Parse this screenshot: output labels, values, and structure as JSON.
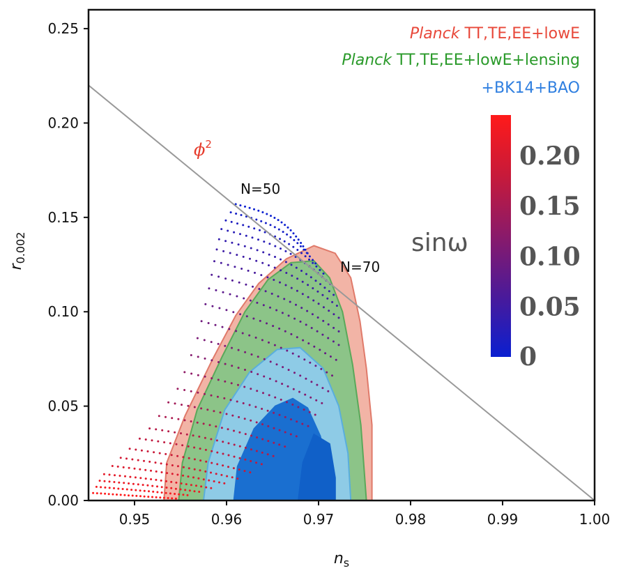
{
  "chart_data": {
    "type": "scatter",
    "xlabel_main": "n",
    "xlabel_sub": "s",
    "ylabel_main": "r",
    "ylabel_sub": "0.002",
    "xlim": [
      0.945,
      1.0
    ],
    "ylim": [
      0.0,
      0.26
    ],
    "xticks": [
      "0.95",
      "0.96",
      "0.97",
      "0.98",
      "0.99",
      "1.00"
    ],
    "xtick_values": [
      0.95,
      0.96,
      0.97,
      0.98,
      0.99,
      1.0
    ],
    "yticks": [
      "0.00",
      "0.05",
      "0.10",
      "0.15",
      "0.20",
      "0.25"
    ],
    "ytick_values": [
      0.0,
      0.05,
      0.1,
      0.15,
      0.2,
      0.25
    ],
    "legend": [
      {
        "italic": "Planck",
        "text": " TT,TE,EE+lowE",
        "color": "#e8483a"
      },
      {
        "italic": "Planck",
        "text": " TT,TE,EE+lowE+lensing",
        "color": "#2a9a2a"
      },
      {
        "italic": "",
        "text": "+BK14+BAO",
        "color": "#2f7fe0"
      }
    ],
    "annotations": {
      "phi2_base": "ϕ",
      "phi2_exp": "2",
      "n50": "N=50",
      "n70": "N=70",
      "colorbar_label": "sinω"
    },
    "phi2_line": {
      "x": [
        0.945,
        1.0
      ],
      "y": [
        0.22,
        0.0
      ],
      "color": "#999999"
    },
    "colorbar": {
      "ticks": [
        "0.20",
        "0.15",
        "0.10",
        "0.05",
        "0"
      ],
      "tick_values": [
        0.2,
        0.15,
        0.1,
        0.05,
        0.0
      ],
      "range": [
        0,
        0.24
      ],
      "colors": [
        "#0a1fd0",
        "#4a1a9a",
        "#8a1a6a",
        "#c71a3a",
        "#ff1a1a"
      ]
    },
    "contours": [
      {
        "name": "planck-lowe",
        "fill": "#f2b4a6",
        "stroke": "#e07a6a",
        "points": [
          [
            0.9532,
            0.0
          ],
          [
            0.9535,
            0.02
          ],
          [
            0.9555,
            0.045
          ],
          [
            0.9585,
            0.075
          ],
          [
            0.961,
            0.098
          ],
          [
            0.9635,
            0.115
          ],
          [
            0.9665,
            0.128
          ],
          [
            0.9695,
            0.135
          ],
          [
            0.9718,
            0.131
          ],
          [
            0.9735,
            0.118
          ],
          [
            0.9745,
            0.095
          ],
          [
            0.9752,
            0.07
          ],
          [
            0.9758,
            0.04
          ],
          [
            0.9758,
            0.0
          ]
        ]
      },
      {
        "name": "planck-lensing",
        "fill": "#8cc488",
        "stroke": "#5aa85a",
        "points": [
          [
            0.9548,
            0.0
          ],
          [
            0.9552,
            0.02
          ],
          [
            0.9568,
            0.048
          ],
          [
            0.9595,
            0.076
          ],
          [
            0.962,
            0.1
          ],
          [
            0.9645,
            0.117
          ],
          [
            0.967,
            0.126
          ],
          [
            0.9695,
            0.127
          ],
          [
            0.9712,
            0.118
          ],
          [
            0.9726,
            0.1
          ],
          [
            0.9737,
            0.072
          ],
          [
            0.9746,
            0.04
          ],
          [
            0.9752,
            0.0
          ]
        ]
      },
      {
        "name": "bk14-outer",
        "fill": "#8ecbe6",
        "stroke": "#5aaedd",
        "points": [
          [
            0.9575,
            0.0
          ],
          [
            0.958,
            0.02
          ],
          [
            0.9598,
            0.048
          ],
          [
            0.9625,
            0.068
          ],
          [
            0.9655,
            0.08
          ],
          [
            0.968,
            0.081
          ],
          [
            0.9705,
            0.07
          ],
          [
            0.9722,
            0.05
          ],
          [
            0.9732,
            0.025
          ],
          [
            0.9735,
            0.0
          ]
        ]
      },
      {
        "name": "bk14-inner",
        "fill": "#1a6fd0",
        "stroke": "#1a6fd0",
        "points": [
          [
            0.9608,
            0.0
          ],
          [
            0.9612,
            0.018
          ],
          [
            0.963,
            0.038
          ],
          [
            0.9653,
            0.05
          ],
          [
            0.9672,
            0.054
          ],
          [
            0.9688,
            0.049
          ],
          [
            0.9702,
            0.034
          ],
          [
            0.9708,
            0.016
          ],
          [
            0.971,
            0.0
          ]
        ]
      },
      {
        "name": "bk14-inner-right",
        "fill": "#1060c8",
        "stroke": "#1060c8",
        "points": [
          [
            0.9678,
            0.0
          ],
          [
            0.9683,
            0.02
          ],
          [
            0.9695,
            0.035
          ],
          [
            0.9712,
            0.03
          ],
          [
            0.9718,
            0.012
          ],
          [
            0.9718,
            0.0
          ]
        ]
      }
    ],
    "model_curves": {
      "n_min": 50,
      "n_max": 70,
      "n_steps": 22,
      "sin_steps": 26,
      "n50_path": [
        [
          0.961,
          0.157
        ],
        [
          0.9595,
          0.145
        ],
        [
          0.9588,
          0.13
        ],
        [
          0.958,
          0.11
        ],
        [
          0.9568,
          0.085
        ],
        [
          0.9548,
          0.06
        ],
        [
          0.952,
          0.04
        ],
        [
          0.949,
          0.025
        ],
        [
          0.9465,
          0.013
        ],
        [
          0.9455,
          0.004
        ]
      ],
      "n70_path": [
        [
          0.9688,
          0.131
        ],
        [
          0.9712,
          0.116
        ],
        [
          0.9722,
          0.1
        ],
        [
          0.9722,
          0.08
        ],
        [
          0.971,
          0.057
        ],
        [
          0.969,
          0.04
        ],
        [
          0.9655,
          0.025
        ],
        [
          0.962,
          0.013
        ],
        [
          0.958,
          0.006
        ],
        [
          0.9545,
          0.001
        ]
      ]
    }
  }
}
